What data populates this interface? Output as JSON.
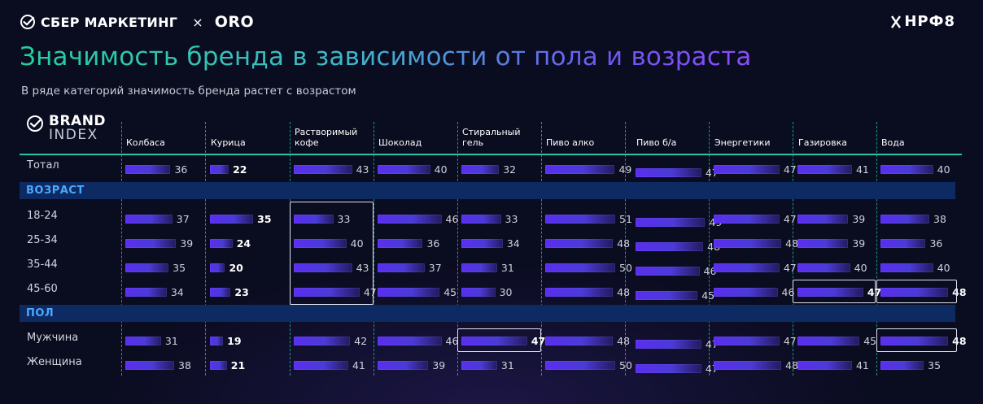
{
  "header": {
    "brand_left": "СБЕР МАРКЕТИНГ",
    "separator": "×",
    "brand_partner": "ORO",
    "brand_right": "НРФ8"
  },
  "title": "Значимость бренда в зависимости от пола и возраста",
  "subtitle": "В ряде категорий значимость бренда растет с возрастом",
  "logo": {
    "line1": "BRAND",
    "line2": "INDEX"
  },
  "colors": {
    "accent_teal": "#26c5a6",
    "bar": "#5a2ef0",
    "section_text": "#4aa8ff",
    "section_band": "#0e2a63",
    "background": "#0a0c1f"
  },
  "chart_data": {
    "type": "table",
    "columns": [
      "Колбаса",
      "Курица",
      "Растворимый кофе",
      "Шоколад",
      "Стиральный гель",
      "Пиво алко",
      "Пиво б/а",
      "Энергетики",
      "Газировка",
      "Вода"
    ],
    "sections": [
      {
        "label": "",
        "rows": [
          {
            "label": "Тотал",
            "values": [
              36,
              22,
              43,
              40,
              32,
              49,
              47,
              47,
              41,
              40
            ]
          }
        ]
      },
      {
        "label": "ВОЗРАСТ",
        "rows": [
          {
            "label": "18-24",
            "values": [
              37,
              35,
              33,
              46,
              33,
              51,
              49,
              47,
              39,
              38
            ]
          },
          {
            "label": "25-34",
            "values": [
              39,
              24,
              40,
              36,
              34,
              48,
              48,
              48,
              39,
              36
            ]
          },
          {
            "label": "35-44",
            "values": [
              35,
              20,
              43,
              37,
              31,
              50,
              46,
              47,
              40,
              40
            ]
          },
          {
            "label": "45-60",
            "values": [
              34,
              23,
              47,
              45,
              30,
              48,
              45,
              46,
              47,
              48
            ]
          }
        ]
      },
      {
        "label": "ПОЛ",
        "rows": [
          {
            "label": "Мужчина",
            "values": [
              31,
              19,
              42,
              46,
              47,
              48,
              47,
              47,
              45,
              48
            ]
          },
          {
            "label": "Женщина",
            "values": [
              38,
              21,
              41,
              39,
              31,
              50,
              47,
              48,
              41,
              35
            ]
          }
        ]
      }
    ],
    "bold_column": "Курица",
    "highlights": [
      {
        "column": "Растворимый кофе",
        "rows": [
          "18-24",
          "25-34",
          "35-44",
          "45-60"
        ]
      },
      {
        "column": "Газировка",
        "rows": [
          "45-60"
        ]
      },
      {
        "column": "Вода",
        "rows": [
          "45-60"
        ]
      },
      {
        "column": "Стиральный гель",
        "rows": [
          "Мужчина"
        ]
      },
      {
        "column": "Вода",
        "rows": [
          "Мужчина"
        ]
      }
    ]
  }
}
